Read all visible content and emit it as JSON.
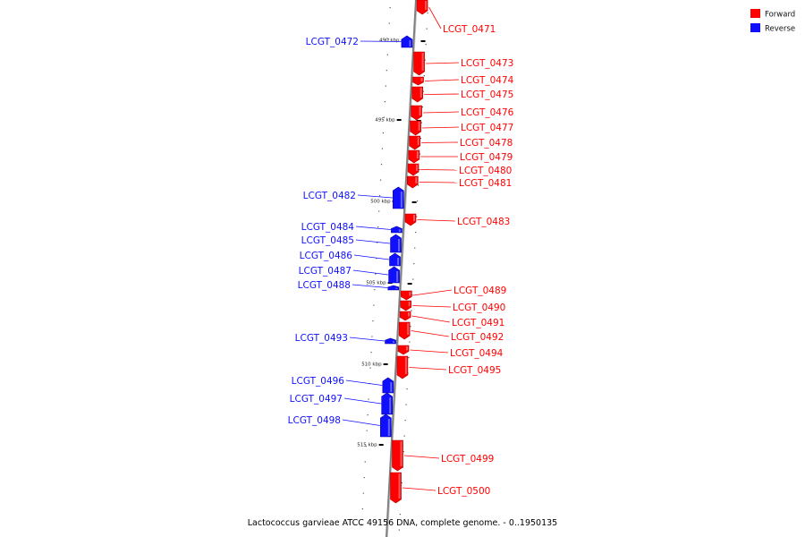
{
  "colors": {
    "forward": "#ff0000",
    "reverse": "#1010ff",
    "backbone": "#808080"
  },
  "legend": [
    {
      "label": "Forward",
      "color": "#ff0000"
    },
    {
      "label": "Reverse",
      "color": "#1010ff"
    }
  ],
  "caption": "Lactococcus garvieae ATCC 49156 DNA, complete genome. - 0..1950135",
  "scale_labels": [
    {
      "kbp": 490,
      "label": "490 kbp"
    },
    {
      "kbp": 495,
      "label": "495 kbp"
    },
    {
      "kbp": 500,
      "label": "500 kbp"
    },
    {
      "kbp": 505,
      "label": "505 kbp"
    },
    {
      "kbp": 510,
      "label": "510 kbp"
    },
    {
      "kbp": 515,
      "label": "515 kbp"
    }
  ],
  "genes": [
    {
      "label": "LCGT_0471",
      "strand": "forward"
    },
    {
      "label": "LCGT_0472",
      "strand": "reverse"
    },
    {
      "label": "LCGT_0473",
      "strand": "forward"
    },
    {
      "label": "LCGT_0474",
      "strand": "forward"
    },
    {
      "label": "LCGT_0475",
      "strand": "forward"
    },
    {
      "label": "LCGT_0476",
      "strand": "forward"
    },
    {
      "label": "LCGT_0477",
      "strand": "forward"
    },
    {
      "label": "LCGT_0478",
      "strand": "forward"
    },
    {
      "label": "LCGT_0479",
      "strand": "forward"
    },
    {
      "label": "LCGT_0480",
      "strand": "forward"
    },
    {
      "label": "LCGT_0481",
      "strand": "forward"
    },
    {
      "label": "LCGT_0482",
      "strand": "reverse"
    },
    {
      "label": "LCGT_0483",
      "strand": "forward"
    },
    {
      "label": "LCGT_0484",
      "strand": "reverse"
    },
    {
      "label": "LCGT_0485",
      "strand": "reverse"
    },
    {
      "label": "LCGT_0486",
      "strand": "reverse"
    },
    {
      "label": "LCGT_0487",
      "strand": "reverse"
    },
    {
      "label": "LCGT_0488",
      "strand": "reverse"
    },
    {
      "label": "LCGT_0489",
      "strand": "forward"
    },
    {
      "label": "LCGT_0490",
      "strand": "forward"
    },
    {
      "label": "LCGT_0491",
      "strand": "forward"
    },
    {
      "label": "LCGT_0492",
      "strand": "forward"
    },
    {
      "label": "LCGT_0493",
      "strand": "reverse"
    },
    {
      "label": "LCGT_0494",
      "strand": "forward"
    },
    {
      "label": "LCGT_0495",
      "strand": "forward"
    },
    {
      "label": "LCGT_0496",
      "strand": "reverse"
    },
    {
      "label": "LCGT_0497",
      "strand": "reverse"
    },
    {
      "label": "LCGT_0498",
      "strand": "reverse"
    },
    {
      "label": "LCGT_0499",
      "strand": "forward"
    },
    {
      "label": "LCGT_0500",
      "strand": "forward"
    }
  ]
}
